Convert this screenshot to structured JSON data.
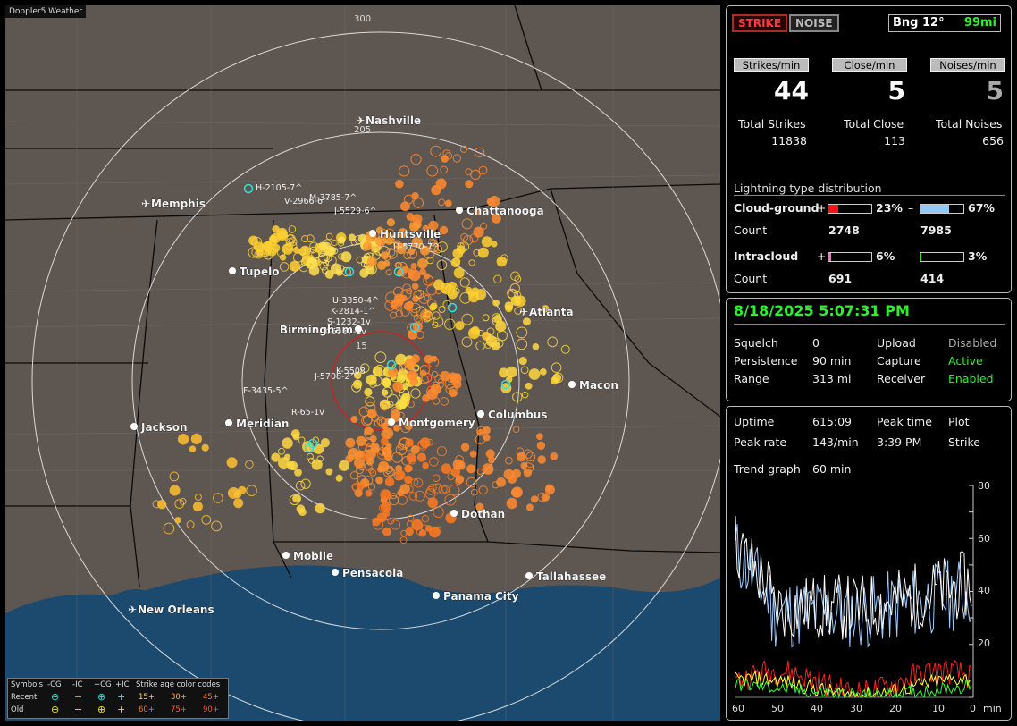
{
  "app": {
    "watermark": "Doppler5 Weather"
  },
  "map": {
    "bearing_rings": [
      "300",
      "205",
      "15"
    ],
    "cities": [
      {
        "name": "Nashville",
        "airport": true
      },
      {
        "name": "Memphis",
        "airport": true
      },
      {
        "name": "Chattanooga",
        "airport": false
      },
      {
        "name": "Huntsville",
        "airport": false
      },
      {
        "name": "Tupelo",
        "airport": false
      },
      {
        "name": "Atlanta",
        "airport": true
      },
      {
        "name": "Birmingham",
        "airport": false
      },
      {
        "name": "Macon",
        "airport": false
      },
      {
        "name": "Jackson",
        "airport": false
      },
      {
        "name": "Meridian",
        "airport": false
      },
      {
        "name": "Montgomery",
        "airport": false
      },
      {
        "name": "Columbus",
        "airport": false
      },
      {
        "name": "Dothan",
        "airport": false
      },
      {
        "name": "Mobile",
        "airport": false
      },
      {
        "name": "Pensacola",
        "airport": false
      },
      {
        "name": "Tallahassee",
        "airport": false
      },
      {
        "name": "Panama City",
        "airport": false
      },
      {
        "name": "New Orleans",
        "airport": true
      }
    ],
    "storm_ids": [
      "H-2105-7^",
      "M-3785-7^",
      "V-2966-6^",
      "J-5529-6^",
      "U-5770-7^",
      "U-3350-4^",
      "K-2814-1^",
      "S-1232-1v",
      "K-5567-1v",
      "K-5508",
      "J-5708-2^",
      "F-3435-5^",
      "R-65-1v"
    ],
    "legend": {
      "symbols_label": "Symbols",
      "type_headers": [
        "-CG",
        "-IC",
        "+CG",
        "+IC"
      ],
      "age_header": "Strike age color codes",
      "recent_label": "Recent",
      "old_label": "Old",
      "recent_ages": [
        "15+",
        "30+",
        "45+"
      ],
      "old_ages": [
        "60+",
        "75+",
        "90+"
      ]
    }
  },
  "status": {
    "strike_btn": "STRIKE",
    "noise_btn": "NOISE",
    "bearing": "Bng 12°",
    "distance": "99mi",
    "rate_headers": [
      "Strikes/min",
      "Close/min",
      "Noises/min"
    ],
    "rates": [
      "44",
      "5",
      "5"
    ],
    "total_labels": [
      "Total Strikes",
      "Total Close",
      "Total Noises"
    ],
    "totals": [
      "11838",
      "113",
      "656"
    ],
    "dist_title": "Lightning type distribution",
    "cg_label": "Cloud-ground",
    "cg_pos_pct": 23,
    "cg_pos_text": "23%",
    "cg_neg_pct": 67,
    "cg_neg_text": "67%",
    "count_label": "Count",
    "cg_pos_count": "2748",
    "cg_neg_count": "7985",
    "ic_label": "Intracloud",
    "ic_pos_pct": 6,
    "ic_pos_text": "6%",
    "ic_neg_pct": 3,
    "ic_neg_text": "3%",
    "ic_pos_count": "691",
    "ic_neg_count": "414",
    "plus": "+",
    "minus": "–"
  },
  "settings": {
    "datetime": "8/18/2025 5:07:31 PM",
    "rows": [
      {
        "k": "Squelch",
        "v": "0",
        "k2": "Upload",
        "v2": "Disabled"
      },
      {
        "k": "Persistence",
        "v": "90 min",
        "k2": "Capture",
        "v2": "Active"
      },
      {
        "k": "Range",
        "v": "313 mi",
        "k2": "Receiver",
        "v2": "Enabled"
      }
    ]
  },
  "trend": {
    "uptime_label": "Uptime",
    "uptime": "615:09",
    "peak_time_label": "Peak time",
    "plot_label": "Plot",
    "peak_rate_label": "Peak rate",
    "peak_rate": "143/min",
    "peak_time": "3:39 PM",
    "plot_value": "Strike",
    "trend_label": "Trend graph",
    "trend_value": "60 min",
    "y_ticks": [
      "80",
      "60",
      "40",
      "20"
    ],
    "x_ticks": [
      "60",
      "50",
      "40",
      "30",
      "20",
      "10",
      "0"
    ],
    "x_unit": "min",
    "colors": {
      "strikes": "#ffffff",
      "noise": "#9ecbff",
      "close": "#ff2020",
      "ic": "#ffff30",
      "pos": "#30ff30"
    }
  }
}
